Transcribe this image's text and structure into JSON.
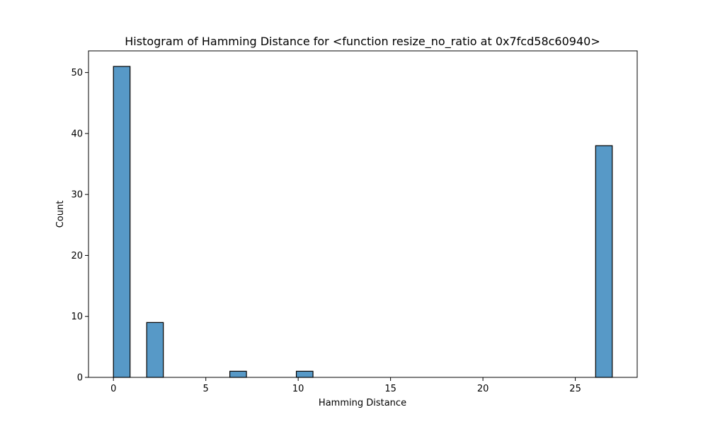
{
  "chart_data": {
    "type": "bar",
    "title": "Histogram of Hamming Distance for <function resize_no_ratio at 0x7fcd58c60940>",
    "xlabel": "Hamming Distance",
    "ylabel": "Count",
    "xlim": [
      -1.35,
      28.35
    ],
    "ylim": [
      0,
      53.55
    ],
    "bin_width": 0.9,
    "xticks": [
      0,
      5,
      10,
      15,
      20,
      25
    ],
    "yticks": [
      0,
      10,
      20,
      30,
      40,
      50
    ],
    "bars": [
      {
        "x": 0.0,
        "value": 51
      },
      {
        "x": 1.8,
        "value": 9
      },
      {
        "x": 6.3,
        "value": 1
      },
      {
        "x": 9.9,
        "value": 1
      },
      {
        "x": 26.1,
        "value": 38
      }
    ],
    "bar_color": "#5799c7",
    "grid": false
  }
}
